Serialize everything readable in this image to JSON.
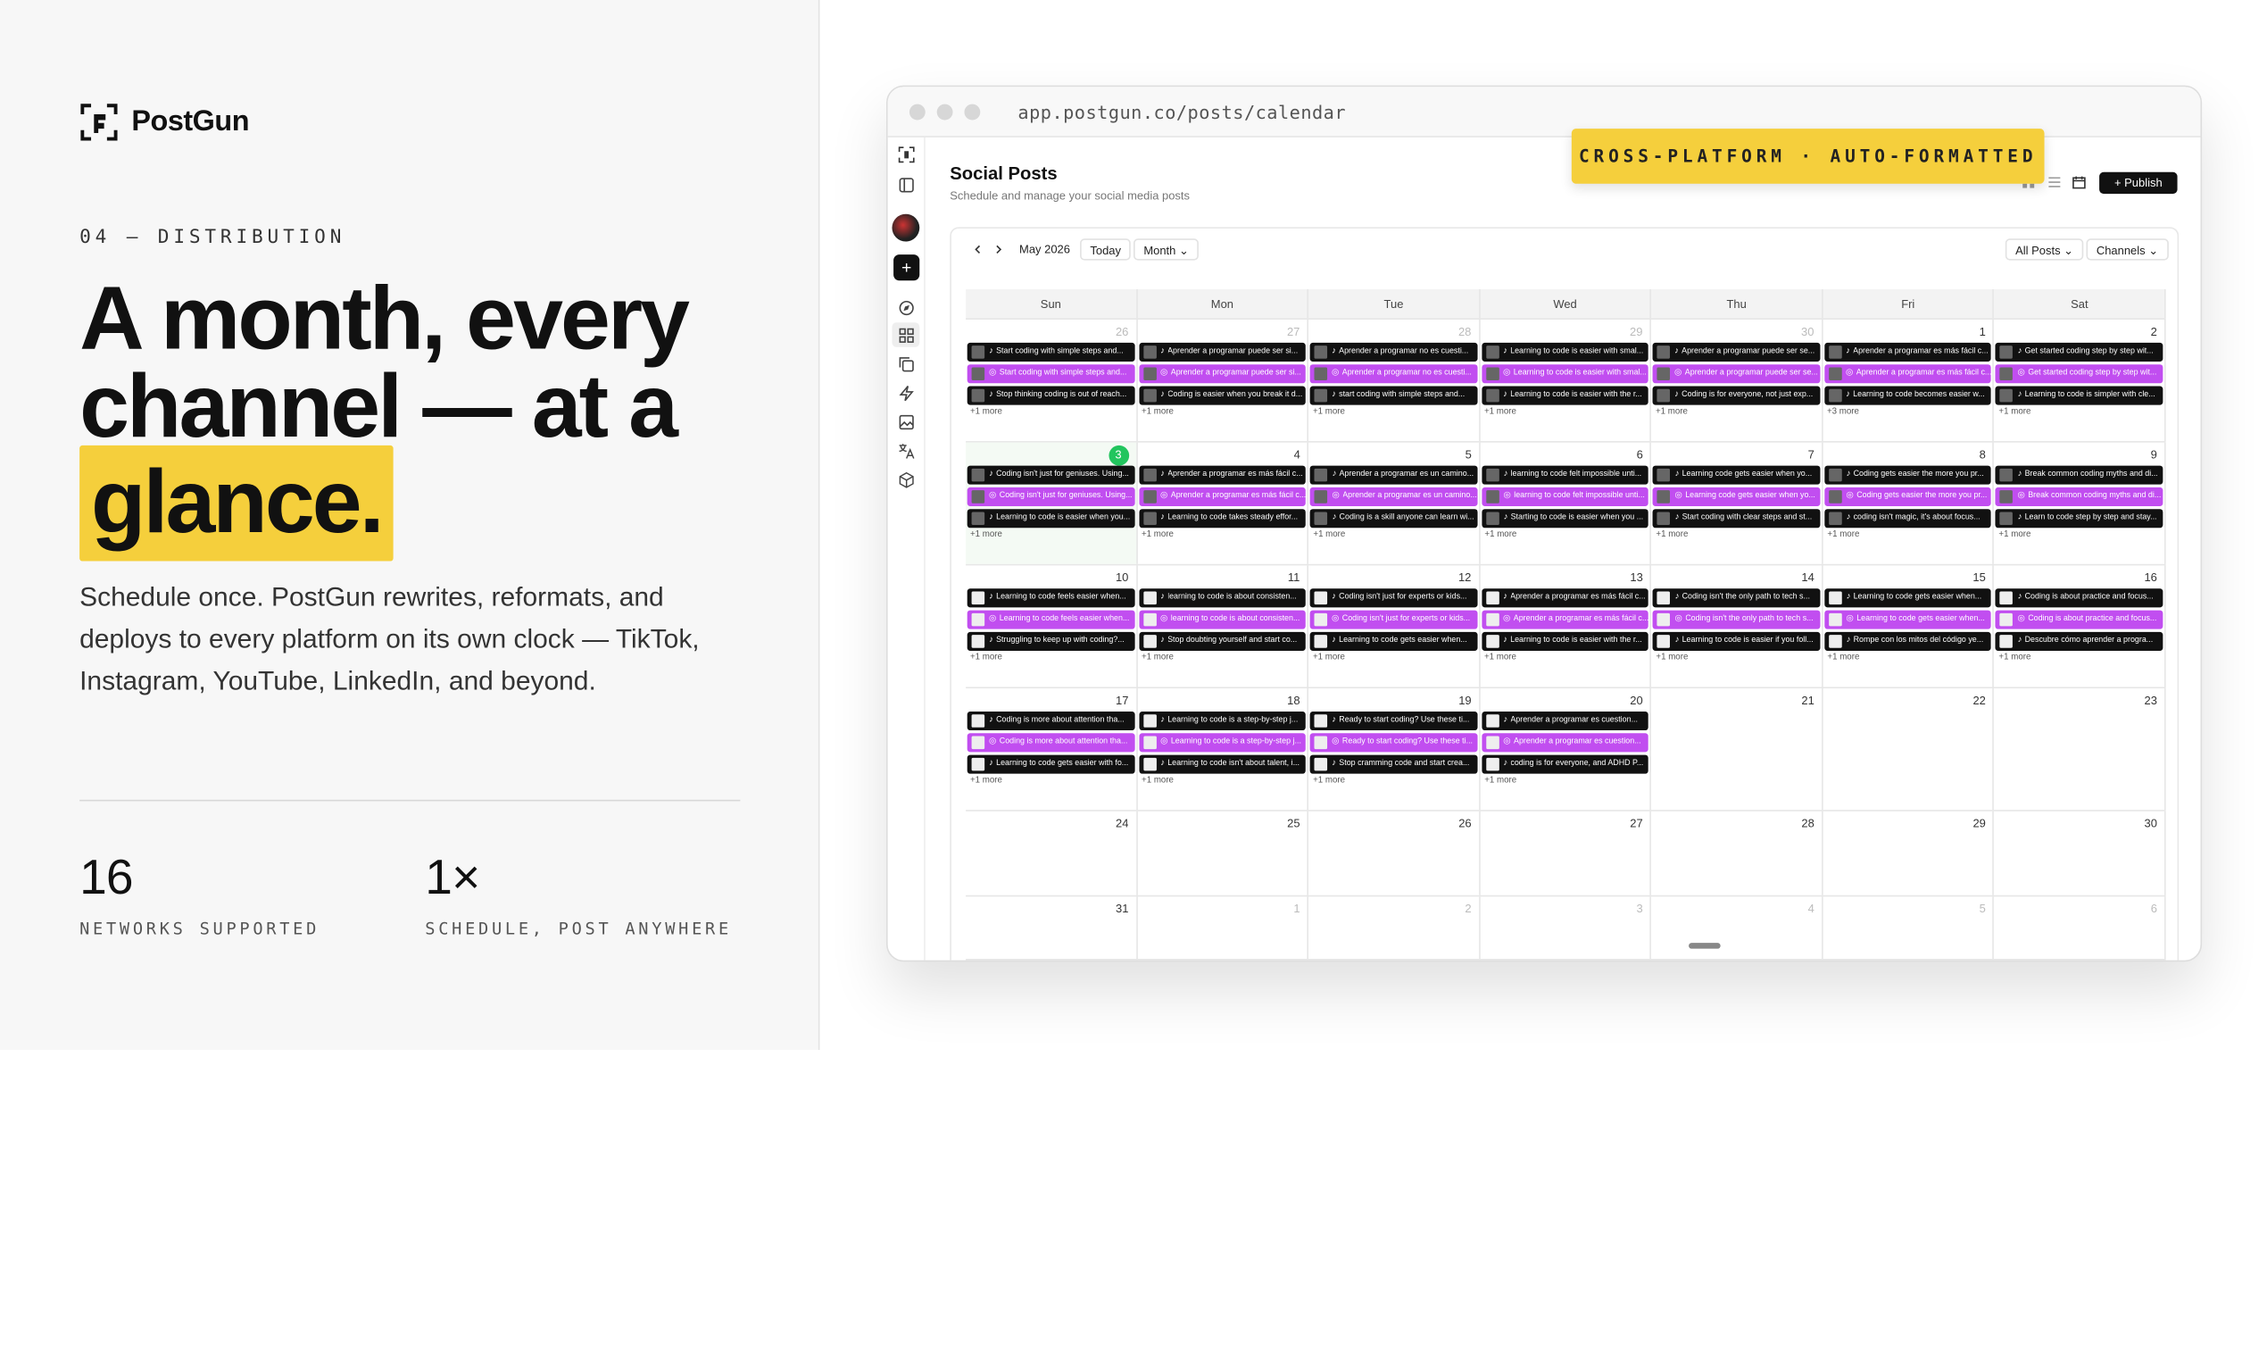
{
  "brand": {
    "name": "PostGun"
  },
  "section": {
    "eyebrow": "04 — DISTRIBUTION"
  },
  "headline": {
    "line1": "A month, every",
    "line2": "channel — at a",
    "highlight": "glance."
  },
  "subtext": "Schedule once. PostGun rewrites, reformats, and deploys to every platform on its own clock — TikTok, Instagram, YouTube, LinkedIn, and beyond.",
  "stats": [
    {
      "value": "16",
      "label": "NETWORKS SUPPORTED"
    },
    {
      "value": "1×",
      "label": "SCHEDULE, POST ANYWHERE"
    }
  ],
  "colors": {
    "accent": "#f5cf3c",
    "tiktok": "#111111",
    "instagram": "#c14ef0",
    "today": "#22c55e"
  },
  "browser": {
    "url": "app.postgun.co/posts/calendar"
  },
  "badge": "CROSS-PLATFORM · AUTO-FORMATTED",
  "app": {
    "title": "Social Posts",
    "subtitle": "Schedule and manage your social media posts",
    "publish": "+ Publish",
    "month_label": "May 2026",
    "today_btn": "Today",
    "view_select": "Month ⌄",
    "filter_posts": "All Posts ⌄",
    "filter_channels": "Channels ⌄",
    "rail_icons": [
      "logo-icon",
      "sidebar-toggle-icon",
      "avatar",
      "add-icon",
      "compass-icon",
      "grid-icon",
      "copy-icon",
      "bolt-icon",
      "image-icon",
      "translate-icon",
      "box-icon"
    ]
  },
  "calendar": {
    "weekdays": [
      "Sun",
      "Mon",
      "Tue",
      "Wed",
      "Thu",
      "Fri",
      "Sat"
    ],
    "weeks": [
      [
        {
          "day": "26",
          "dim": true,
          "posts": [
            {
              "p": "tt",
              "t": "Start coding with simple steps and..."
            },
            {
              "p": "ig",
              "t": "Start coding with simple steps and..."
            },
            {
              "p": "tt",
              "t": "Stop thinking coding is out of reach..."
            }
          ],
          "more": "+1 more"
        },
        {
          "day": "27",
          "dim": true,
          "posts": [
            {
              "p": "tt",
              "t": "Aprender a programar puede ser si..."
            },
            {
              "p": "ig",
              "t": "Aprender a programar puede ser si..."
            },
            {
              "p": "tt",
              "t": "Coding is easier when you break it d..."
            }
          ],
          "more": "+1 more"
        },
        {
          "day": "28",
          "dim": true,
          "posts": [
            {
              "p": "tt",
              "t": "Aprender a programar no es cuesti..."
            },
            {
              "p": "ig",
              "t": "Aprender a programar no es cuesti..."
            },
            {
              "p": "tt",
              "t": "start coding with simple steps and..."
            }
          ],
          "more": "+1 more"
        },
        {
          "day": "29",
          "dim": true,
          "posts": [
            {
              "p": "tt",
              "t": "Learning to code is easier with smal..."
            },
            {
              "p": "ig",
              "t": "Learning to code is easier with smal..."
            },
            {
              "p": "tt",
              "t": "Learning to code is easier with the r..."
            }
          ],
          "more": "+1 more"
        },
        {
          "day": "30",
          "dim": true,
          "posts": [
            {
              "p": "tt",
              "t": "Aprender a programar puede ser se..."
            },
            {
              "p": "ig",
              "t": "Aprender a programar puede ser se..."
            },
            {
              "p": "tt",
              "t": "Coding is for everyone, not just exp..."
            }
          ],
          "more": "+1 more"
        },
        {
          "day": "1",
          "dim": false,
          "posts": [
            {
              "p": "tt",
              "t": "Aprender a programar es más fácil c..."
            },
            {
              "p": "ig",
              "t": "Aprender a programar es más fácil c..."
            },
            {
              "p": "tt",
              "t": "Learning to code becomes easier w..."
            }
          ],
          "more": "+3 more"
        },
        {
          "day": "2",
          "dim": false,
          "posts": [
            {
              "p": "tt",
              "t": "Get started coding step by step wit..."
            },
            {
              "p": "ig",
              "t": "Get started coding step by step wit..."
            },
            {
              "p": "tt",
              "t": "Learning to code is simpler with cle..."
            }
          ],
          "more": "+1 more"
        }
      ],
      [
        {
          "day": "3",
          "today": true,
          "posts": [
            {
              "p": "tt",
              "t": "Coding isn't just for geniuses. Using..."
            },
            {
              "p": "ig",
              "t": "Coding isn't just for geniuses. Using..."
            },
            {
              "p": "tt",
              "t": "Learning to code is easier when you..."
            }
          ],
          "more": "+1 more"
        },
        {
          "day": "4",
          "posts": [
            {
              "p": "tt",
              "t": "Aprender a programar es más fácil c..."
            },
            {
              "p": "ig",
              "t": "Aprender a programar es más fácil c..."
            },
            {
              "p": "tt",
              "t": "Learning to code takes steady effor..."
            }
          ],
          "more": "+1 more"
        },
        {
          "day": "5",
          "posts": [
            {
              "p": "tt",
              "t": "Aprender a programar es un camino..."
            },
            {
              "p": "ig",
              "t": "Aprender a programar es un camino..."
            },
            {
              "p": "tt",
              "t": "Coding is a skill anyone can learn wi..."
            }
          ],
          "more": "+1 more"
        },
        {
          "day": "6",
          "posts": [
            {
              "p": "tt",
              "t": "learning to code felt impossible unti..."
            },
            {
              "p": "ig",
              "t": "learning to code felt impossible unti..."
            },
            {
              "p": "tt",
              "t": "Starting to code is easier when you ..."
            }
          ],
          "more": "+1 more"
        },
        {
          "day": "7",
          "posts": [
            {
              "p": "tt",
              "t": "Learning code gets easier when yo..."
            },
            {
              "p": "ig",
              "t": "Learning code gets easier when yo..."
            },
            {
              "p": "tt",
              "t": "Start coding with clear steps and st..."
            }
          ],
          "more": "+1 more"
        },
        {
          "day": "8",
          "posts": [
            {
              "p": "tt",
              "t": "Coding gets easier the more you pr..."
            },
            {
              "p": "ig",
              "t": "Coding gets easier the more you pr..."
            },
            {
              "p": "tt",
              "t": "coding isn't magic, it's about focus..."
            }
          ],
          "more": "+1 more"
        },
        {
          "day": "9",
          "posts": [
            {
              "p": "tt",
              "t": "Break common coding myths and di..."
            },
            {
              "p": "ig",
              "t": "Break common coding myths and di..."
            },
            {
              "p": "tt",
              "t": "Learn to code step by step and stay..."
            }
          ],
          "more": "+1 more"
        }
      ],
      [
        {
          "day": "10",
          "w": true,
          "posts": [
            {
              "p": "tt",
              "t": "Learning to code feels easier when..."
            },
            {
              "p": "ig",
              "t": "Learning to code feels easier when..."
            },
            {
              "p": "tt",
              "t": "Struggling to keep up with coding?..."
            }
          ],
          "more": "+1 more"
        },
        {
          "day": "11",
          "w": true,
          "posts": [
            {
              "p": "tt",
              "t": "learning to code is about consisten..."
            },
            {
              "p": "ig",
              "t": "learning to code is about consisten..."
            },
            {
              "p": "tt",
              "t": "Stop doubting yourself and start co..."
            }
          ],
          "more": "+1 more"
        },
        {
          "day": "12",
          "w": true,
          "posts": [
            {
              "p": "tt",
              "t": "Coding isn't just for experts or kids..."
            },
            {
              "p": "ig",
              "t": "Coding isn't just for experts or kids..."
            },
            {
              "p": "tt",
              "t": "Learning to code gets easier when..."
            }
          ],
          "more": "+1 more"
        },
        {
          "day": "13",
          "w": true,
          "posts": [
            {
              "p": "tt",
              "t": "Aprender a programar es más fácil c..."
            },
            {
              "p": "ig",
              "t": "Aprender a programar es más fácil c..."
            },
            {
              "p": "tt",
              "t": "Learning to code is easier with the r..."
            }
          ],
          "more": "+1 more"
        },
        {
          "day": "14",
          "w": true,
          "posts": [
            {
              "p": "tt",
              "t": "Coding isn't the only path to tech s..."
            },
            {
              "p": "ig",
              "t": "Coding isn't the only path to tech s..."
            },
            {
              "p": "tt",
              "t": "Learning to code is easier if you foll..."
            }
          ],
          "more": "+1 more"
        },
        {
          "day": "15",
          "w": true,
          "posts": [
            {
              "p": "tt",
              "t": "Learning to code gets easier when..."
            },
            {
              "p": "ig",
              "t": "Learning to code gets easier when..."
            },
            {
              "p": "tt",
              "t": "Rompe con los mitos del código ye..."
            }
          ],
          "more": "+1 more"
        },
        {
          "day": "16",
          "w": true,
          "posts": [
            {
              "p": "tt",
              "t": "Coding is about practice and focus..."
            },
            {
              "p": "ig",
              "t": "Coding is about practice and focus..."
            },
            {
              "p": "tt",
              "t": "Descubre cómo aprender a progra..."
            }
          ],
          "more": "+1 more"
        }
      ],
      [
        {
          "day": "17",
          "w": true,
          "posts": [
            {
              "p": "tt",
              "t": "Coding is more about attention tha..."
            },
            {
              "p": "ig",
              "t": "Coding is more about attention tha..."
            },
            {
              "p": "tt",
              "t": "Learning to code gets easier with fo..."
            }
          ],
          "more": "+1 more"
        },
        {
          "day": "18",
          "w": true,
          "posts": [
            {
              "p": "tt",
              "t": "Learning to code is a step-by-step j..."
            },
            {
              "p": "ig",
              "t": "Learning to code is a step-by-step j..."
            },
            {
              "p": "tt",
              "t": "Learning to code isn't about talent, i..."
            }
          ],
          "more": "+1 more"
        },
        {
          "day": "19",
          "w": true,
          "posts": [
            {
              "p": "tt",
              "t": "Ready to start coding? Use these ti..."
            },
            {
              "p": "ig",
              "t": "Ready to start coding? Use these ti..."
            },
            {
              "p": "tt",
              "t": "Stop cramming code and start crea..."
            }
          ],
          "more": "+1 more"
        },
        {
          "day": "20",
          "w": true,
          "posts": [
            {
              "p": "tt",
              "t": "Aprender a programar es cuestion..."
            },
            {
              "p": "ig",
              "t": "Aprender a programar es cuestion..."
            },
            {
              "p": "tt",
              "t": "coding is for everyone, and ADHD P..."
            }
          ],
          "more": "+1 more"
        },
        {
          "day": "21",
          "posts": [],
          "more": ""
        },
        {
          "day": "22",
          "posts": [],
          "more": ""
        },
        {
          "day": "23",
          "posts": [],
          "more": ""
        }
      ],
      [
        {
          "day": "24",
          "posts": [],
          "more": ""
        },
        {
          "day": "25",
          "posts": [],
          "more": ""
        },
        {
          "day": "26",
          "posts": [],
          "more": ""
        },
        {
          "day": "27",
          "posts": [],
          "more": ""
        },
        {
          "day": "28",
          "posts": [],
          "more": ""
        },
        {
          "day": "29",
          "posts": [],
          "more": ""
        },
        {
          "day": "30",
          "posts": [],
          "more": ""
        }
      ],
      [
        {
          "day": "31",
          "posts": [],
          "more": ""
        },
        {
          "day": "1",
          "dim": true,
          "posts": [],
          "more": ""
        },
        {
          "day": "2",
          "dim": true,
          "posts": [],
          "more": ""
        },
        {
          "day": "3",
          "dim": true,
          "posts": [],
          "more": ""
        },
        {
          "day": "4",
          "dim": true,
          "posts": [],
          "more": ""
        },
        {
          "day": "5",
          "dim": true,
          "posts": [],
          "more": ""
        },
        {
          "day": "6",
          "dim": true,
          "posts": [],
          "more": ""
        }
      ]
    ]
  }
}
